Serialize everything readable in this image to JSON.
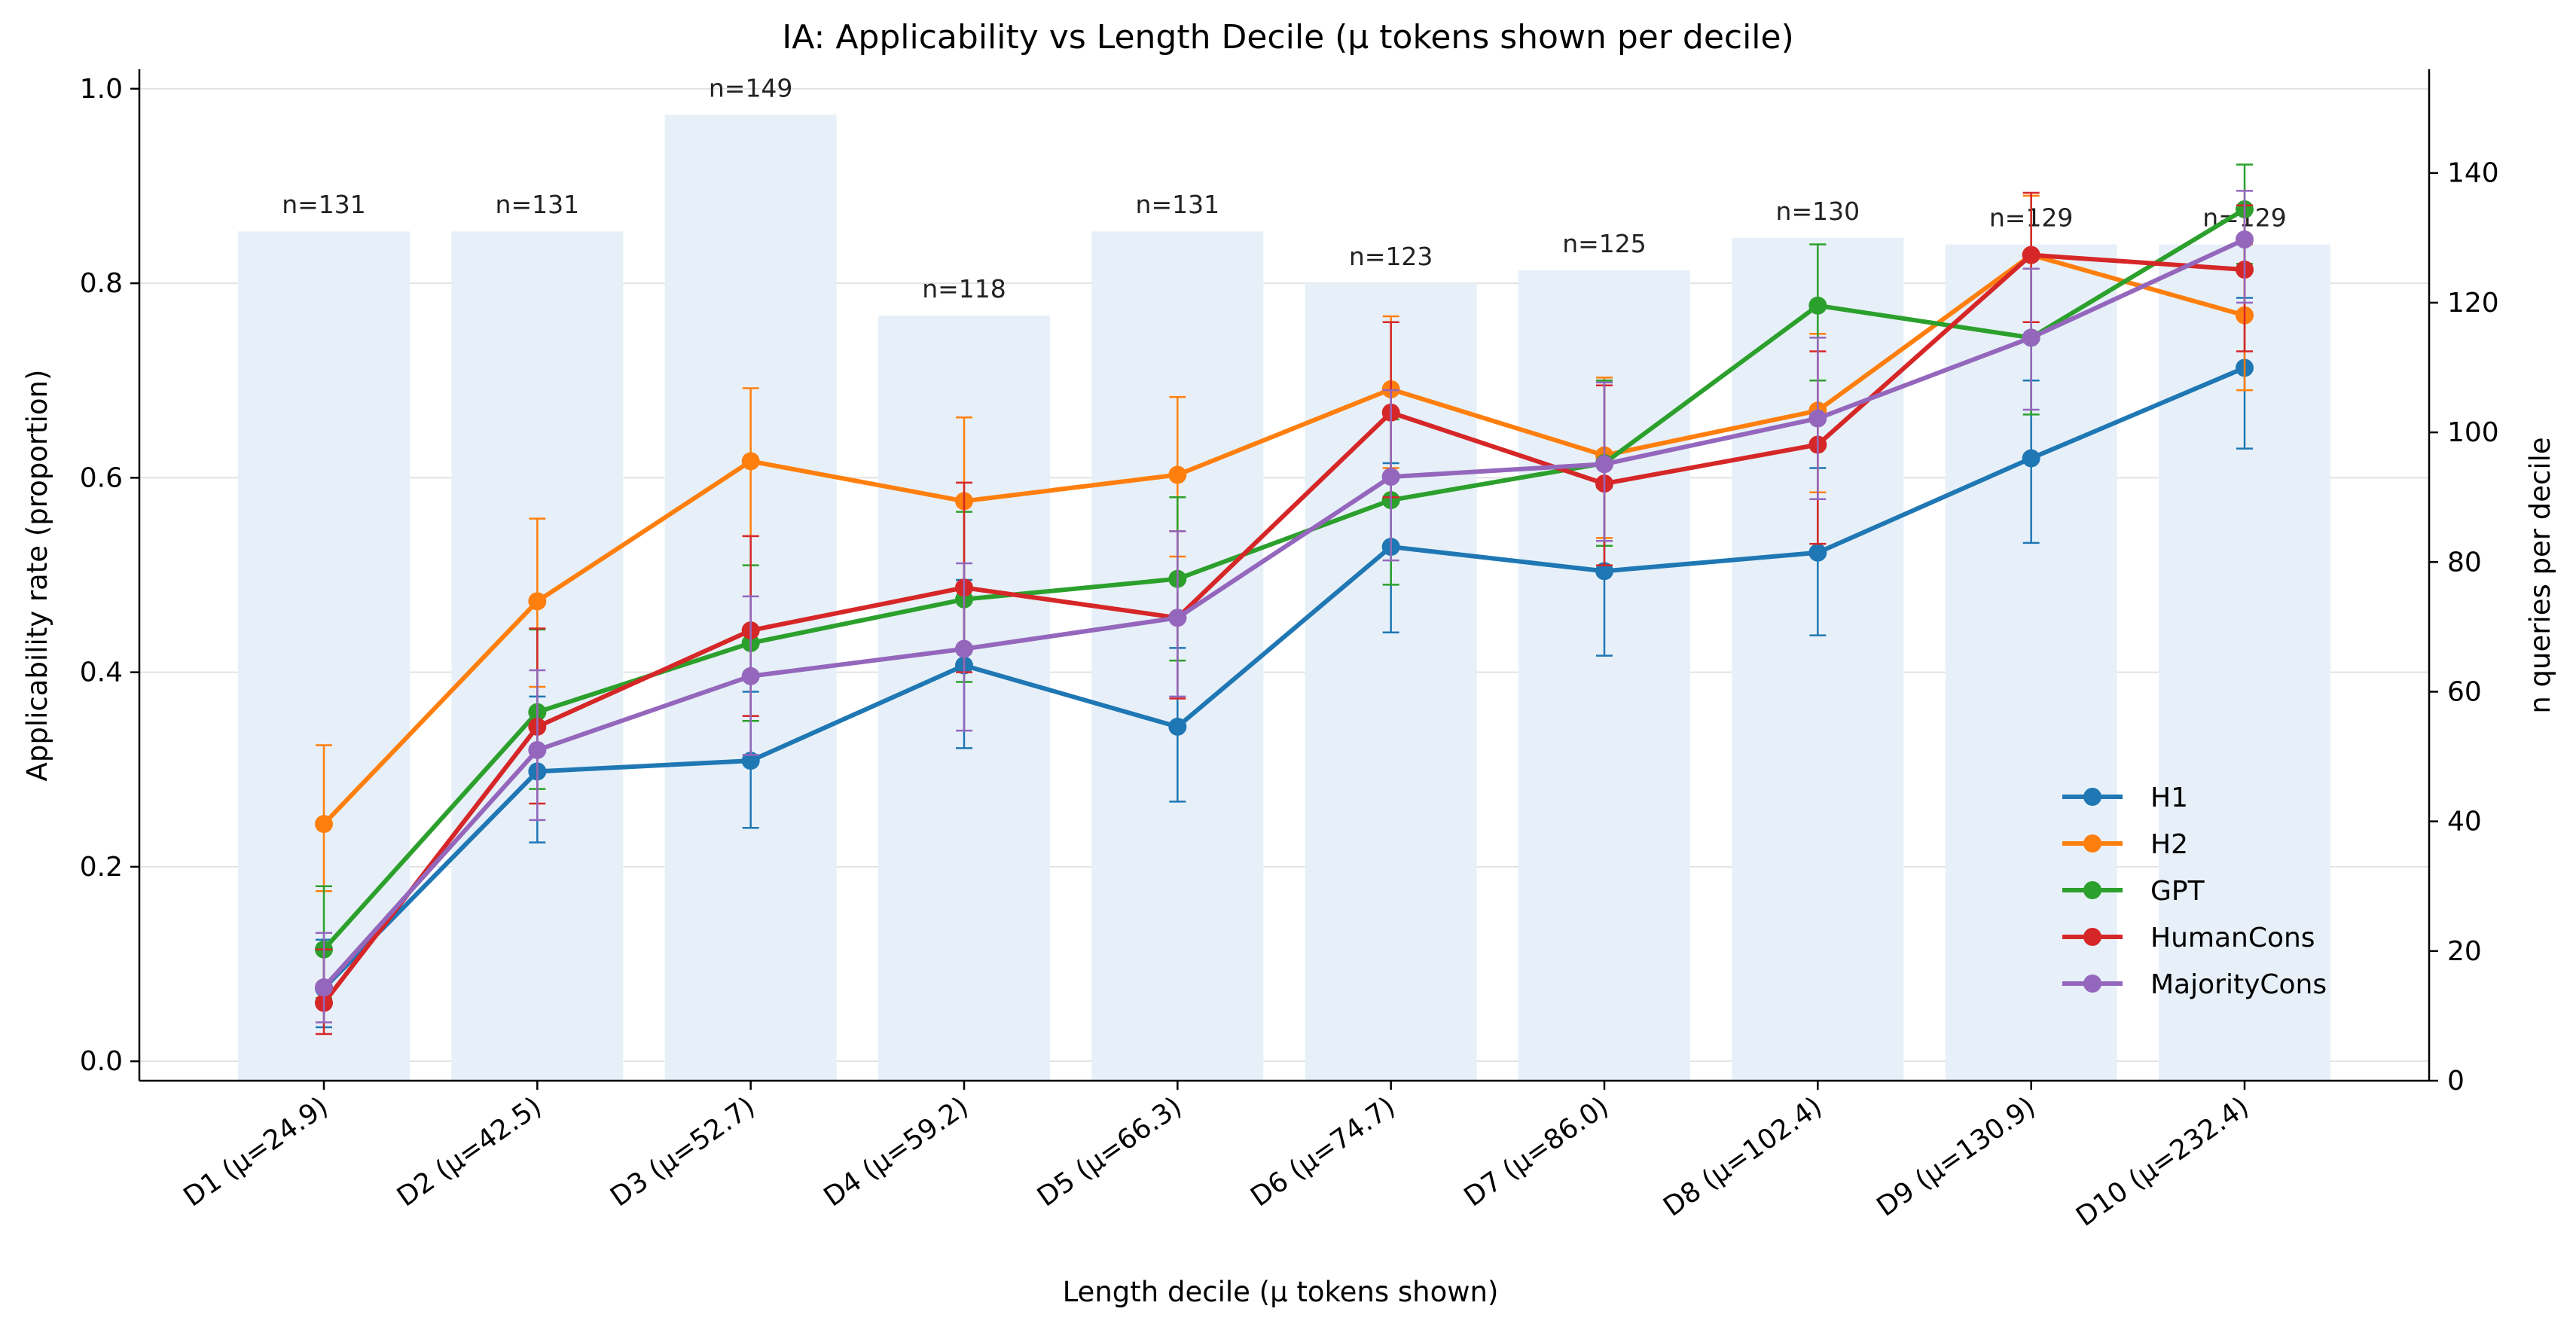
{
  "chart_data": {
    "type": "line",
    "title": "IA: Applicability vs Length Decile (μ tokens shown per decile)",
    "xlabel": "Length decile (μ tokens shown)",
    "ylabel": "Applicability rate (proportion)",
    "y2label": "n queries per decile",
    "categories": [
      "D1 (μ=24.9)",
      "D2 (μ=42.5)",
      "D3 (μ=52.7)",
      "D4 (μ=59.2)",
      "D5 (μ=66.3)",
      "D6 (μ=74.7)",
      "D7 (μ=86.0)",
      "D8 (μ=102.4)",
      "D9 (μ=130.9)",
      "D10 (μ=232.4)"
    ],
    "ylim": [
      -0.02,
      1.02
    ],
    "y2lim": [
      0,
      156
    ],
    "yticks": [
      "0.0",
      "0.2",
      "0.4",
      "0.6",
      "0.8",
      "1.0"
    ],
    "y2ticks": [
      "0",
      "20",
      "40",
      "60",
      "80",
      "100",
      "120",
      "140"
    ],
    "grid": "horizontal",
    "legend_position": "lower-right",
    "bars": {
      "name": "n queries per decile",
      "color": "#e7f0f8",
      "values": [
        131,
        131,
        149,
        118,
        131,
        123,
        125,
        130,
        129,
        129
      ],
      "labels": [
        "n=131",
        "n=131",
        "n=149",
        "n=118",
        "n=131",
        "n=123",
        "n=125",
        "n=130",
        "n=129",
        "n=129"
      ]
    },
    "series": [
      {
        "name": "H1",
        "color": "#1f77b4",
        "values": [
          0.075,
          0.298,
          0.309,
          0.407,
          0.344,
          0.529,
          0.504,
          0.523,
          0.62,
          0.713
        ],
        "err_low": [
          0.035,
          0.225,
          0.24,
          0.322,
          0.267,
          0.441,
          0.417,
          0.438,
          0.533,
          0.63
        ],
        "err_high": [
          0.125,
          0.375,
          0.38,
          0.495,
          0.425,
          0.615,
          0.59,
          0.61,
          0.7,
          0.785
        ]
      },
      {
        "name": "H2",
        "color": "#ff7f0e",
        "values": [
          0.244,
          0.473,
          0.617,
          0.576,
          0.603,
          0.691,
          0.623,
          0.669,
          0.829,
          0.767
        ],
        "err_low": [
          0.175,
          0.385,
          0.54,
          0.488,
          0.519,
          0.61,
          0.538,
          0.585,
          0.76,
          0.69
        ],
        "err_high": [
          0.325,
          0.558,
          0.692,
          0.662,
          0.683,
          0.766,
          0.703,
          0.748,
          0.89,
          0.84
        ]
      },
      {
        "name": "GPT",
        "color": "#2ca02c",
        "values": [
          0.115,
          0.359,
          0.43,
          0.475,
          0.496,
          0.577,
          0.615,
          0.777,
          0.744,
          0.876
        ],
        "err_low": [
          0.065,
          0.28,
          0.35,
          0.39,
          0.412,
          0.49,
          0.53,
          0.7,
          0.665,
          0.82
        ],
        "err_high": [
          0.18,
          0.444,
          0.51,
          0.565,
          0.58,
          0.66,
          0.7,
          0.84,
          0.815,
          0.922
        ]
      },
      {
        "name": "HumanCons",
        "color": "#d62728",
        "values": [
          0.06,
          0.344,
          0.443,
          0.487,
          0.456,
          0.667,
          0.594,
          0.634,
          0.829,
          0.814
        ],
        "err_low": [
          0.028,
          0.265,
          0.355,
          0.4,
          0.373,
          0.58,
          0.51,
          0.532,
          0.76,
          0.73
        ],
        "err_high": [
          0.115,
          0.445,
          0.54,
          0.595,
          0.545,
          0.76,
          0.695,
          0.73,
          0.893,
          0.88
        ]
      },
      {
        "name": "MajorityCons",
        "color": "#9467bd",
        "values": [
          0.076,
          0.32,
          0.396,
          0.424,
          0.456,
          0.601,
          0.614,
          0.661,
          0.744,
          0.845
        ],
        "err_low": [
          0.04,
          0.248,
          0.315,
          0.34,
          0.375,
          0.515,
          0.535,
          0.578,
          0.67,
          0.78
        ],
        "err_high": [
          0.132,
          0.402,
          0.478,
          0.512,
          0.545,
          0.69,
          0.698,
          0.744,
          0.815,
          0.895
        ]
      }
    ]
  }
}
